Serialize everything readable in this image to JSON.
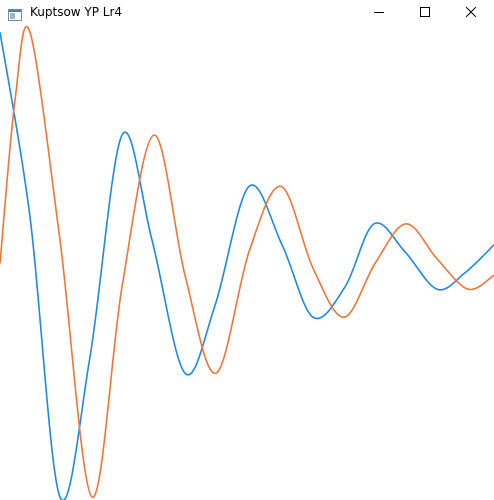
{
  "window": {
    "title": "Kuptsow YP Lr4",
    "icon": "app-window-icon",
    "controls": {
      "minimize_icon": "minimize-icon",
      "maximize_icon": "maximize-icon",
      "close_icon": "close-icon"
    }
  },
  "colors": {
    "series_1": "#1e88e5",
    "series_2": "#f07538",
    "background": "#ffffff"
  },
  "chart_data": {
    "type": "line",
    "x_range": [
      0,
      494
    ],
    "y_range": [
      -1,
      1
    ],
    "series": [
      {
        "color": "#1e88e5",
        "points": [
          [
            0,
            0.99
          ],
          [
            30,
            0.2
          ],
          [
            60,
            -1.0
          ],
          [
            90,
            -0.4
          ],
          [
            122,
            0.55
          ],
          [
            152,
            0.1
          ],
          [
            185,
            -0.47
          ],
          [
            215,
            -0.18
          ],
          [
            249,
            0.33
          ],
          [
            282,
            0.08
          ],
          [
            313,
            -0.23
          ],
          [
            345,
            -0.1
          ],
          [
            374,
            0.17
          ],
          [
            405,
            0.05
          ],
          [
            437,
            -0.11
          ],
          [
            465,
            -0.04
          ],
          [
            494,
            0.08
          ]
        ]
      },
      {
        "color": "#f07538",
        "points": [
          [
            0,
            0.0
          ],
          [
            15,
            0.7
          ],
          [
            30,
            0.99
          ],
          [
            60,
            0.1
          ],
          [
            92,
            -1.0
          ],
          [
            122,
            -0.1
          ],
          [
            154,
            0.55
          ],
          [
            185,
            -0.05
          ],
          [
            216,
            -0.47
          ],
          [
            249,
            0.05
          ],
          [
            281,
            0.33
          ],
          [
            313,
            -0.02
          ],
          [
            344,
            -0.23
          ],
          [
            375,
            0.0
          ],
          [
            406,
            0.17
          ],
          [
            437,
            0.02
          ],
          [
            468,
            -0.11
          ],
          [
            494,
            -0.05
          ]
        ]
      }
    ]
  }
}
